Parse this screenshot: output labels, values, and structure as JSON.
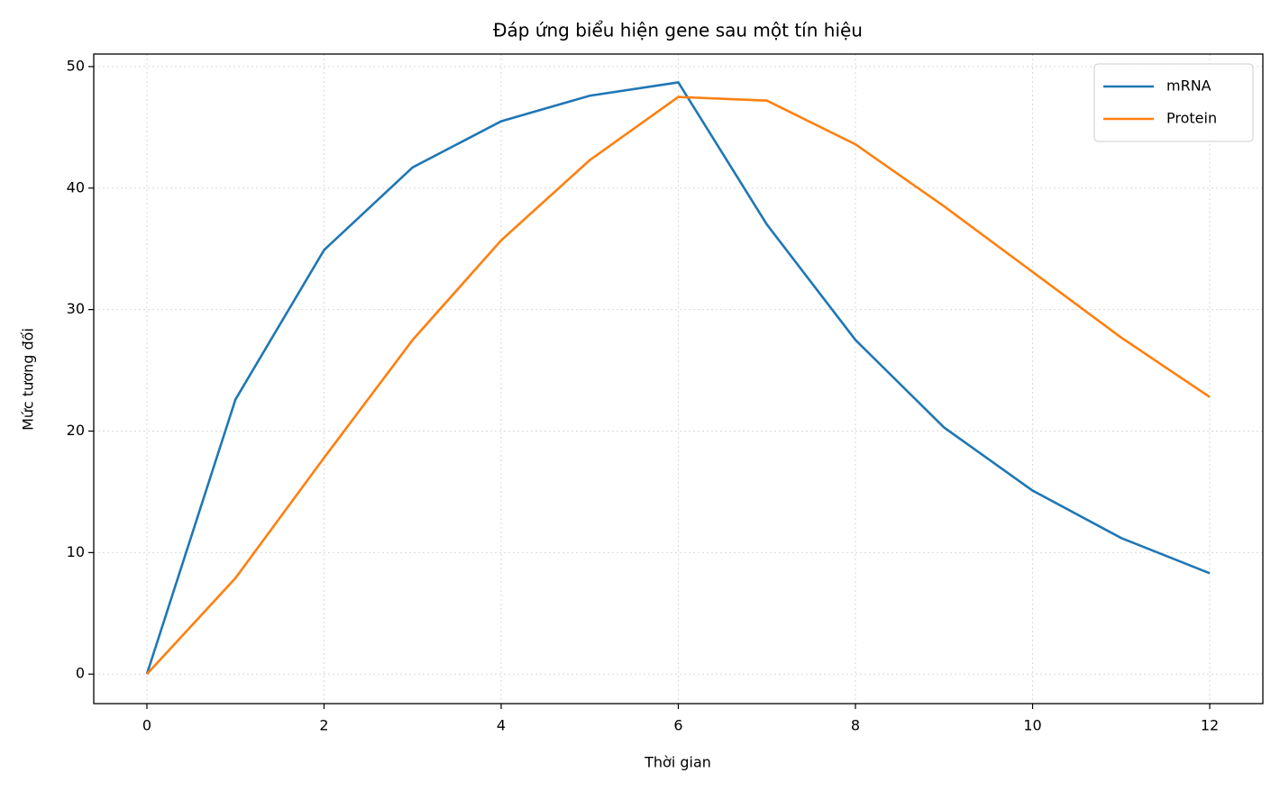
{
  "chart_data": {
    "type": "line",
    "title": "Đáp ứng biểu hiện gene sau một tín hiệu",
    "x_label": "Thời gian",
    "y_label": "Mức tương đối",
    "x": [
      0,
      1,
      2,
      3,
      4,
      5,
      6,
      7,
      8,
      9,
      10,
      11,
      12
    ],
    "series": [
      {
        "name": "mRNA",
        "color": "#1f77b4",
        "values": [
          0,
          22.6,
          34.9,
          41.7,
          45.5,
          47.6,
          48.7,
          37.0,
          27.5,
          20.3,
          15.1,
          11.2,
          8.3
        ]
      },
      {
        "name": "Protein",
        "color": "#ff7f0e",
        "values": [
          0,
          7.9,
          17.8,
          27.5,
          35.7,
          42.3,
          47.5,
          47.2,
          43.6,
          38.5,
          33.1,
          27.7,
          22.8
        ]
      }
    ],
    "xlim": [
      -0.6,
      12.6
    ],
    "xticks": [
      0,
      2,
      4,
      6,
      8,
      10,
      12
    ],
    "ylim": [
      -2.43,
      51.03
    ],
    "yticks": [
      0,
      10,
      20,
      30,
      40,
      50
    ],
    "grid": true,
    "legend": "upper right"
  }
}
